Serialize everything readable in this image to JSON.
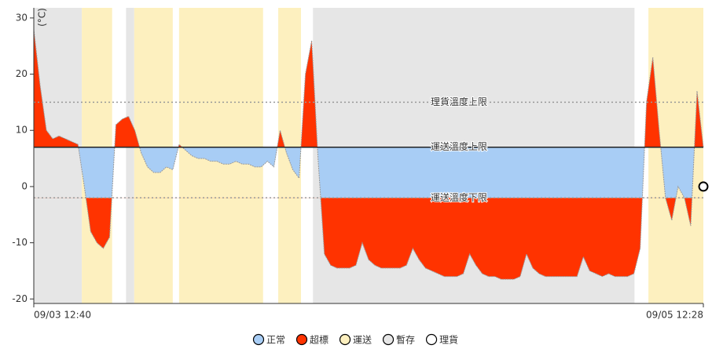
{
  "chart_data": {
    "type": "threshold-area",
    "y_label": "(°C)",
    "categories": [
      "09/03 12:40",
      null,
      null,
      null,
      null,
      null,
      null,
      null,
      null,
      null,
      null,
      null,
      null,
      null,
      null,
      null,
      null,
      null,
      null,
      null,
      null,
      null,
      null,
      null,
      null,
      null,
      null,
      null,
      null,
      null,
      null,
      null,
      null,
      null,
      null,
      null,
      null,
      null,
      null,
      null,
      null,
      null,
      null,
      null,
      null,
      null,
      null,
      null,
      null,
      null,
      null,
      null,
      null,
      null,
      null,
      null,
      null,
      null,
      null,
      null,
      null,
      null,
      null,
      null,
      null,
      null,
      null,
      null,
      null,
      null,
      null,
      null,
      null,
      null,
      null,
      null,
      null,
      null,
      null,
      null,
      null,
      null,
      null,
      null,
      null,
      null,
      null,
      null,
      null,
      null,
      null,
      null,
      null,
      null,
      null,
      null,
      null,
      null,
      null,
      null,
      null,
      null,
      null,
      null,
      null,
      null,
      "09/05 12:28"
    ],
    "values": [
      28,
      18,
      10,
      8.5,
      9,
      8.5,
      8,
      7.5,
      0,
      -8,
      -10,
      -11,
      -9,
      11,
      12,
      12.5,
      10,
      6,
      3.5,
      2.5,
      2.5,
      3.5,
      3,
      7.5,
      6.5,
      5.5,
      5,
      5,
      4.5,
      4.5,
      4,
      4,
      4.5,
      4,
      4,
      3.5,
      3.5,
      4.5,
      3.5,
      10,
      6,
      3,
      1.5,
      20,
      26,
      5,
      -12,
      -14,
      -14.5,
      -14.5,
      -14.5,
      -14,
      -10,
      -13,
      -14,
      -14.5,
      -14.5,
      -14.5,
      -14.5,
      -14,
      -11,
      -13,
      -14.5,
      -15,
      -15.5,
      -16,
      -16,
      -16,
      -15.5,
      -12,
      -14,
      -15.5,
      -16,
      -16,
      -16.5,
      -16.5,
      -16.5,
      -16,
      -12,
      -14.5,
      -15.5,
      -16,
      -16,
      -16,
      -16,
      -16,
      -16,
      -12.5,
      -15,
      -15.5,
      -16,
      -15.5,
      -16,
      -16,
      -16,
      -15.5,
      -11,
      15,
      23,
      10,
      -2,
      -6,
      0,
      -2,
      -7,
      17,
      7
    ],
    "marker_value": 0,
    "ylim": [
      -20.8,
      31.8
    ],
    "yticks": [
      -20,
      -10,
      0,
      10,
      20,
      30
    ],
    "thresholds": [
      {
        "label": "理貨溫度上限",
        "value": 15,
        "style": "dotted"
      },
      {
        "label": "運送溫度上限",
        "value": 7,
        "style": "solid"
      },
      {
        "label": "運送溫度下限",
        "value": -2,
        "style": "dotted"
      }
    ],
    "bands": [
      {
        "type": "暫存",
        "start": 0,
        "end": 7.6
      },
      {
        "type": "運送",
        "start": 7.6,
        "end": 12.4
      },
      {
        "type": "暫存",
        "start": 14.6,
        "end": 15.9
      },
      {
        "type": "運送",
        "start": 15.9,
        "end": 22
      },
      {
        "type": "運送",
        "start": 23,
        "end": 36.3
      },
      {
        "type": "運送",
        "start": 38.7,
        "end": 42.3
      },
      {
        "type": "暫存",
        "start": 44.2,
        "end": 95.1
      },
      {
        "type": "運送",
        "start": 97.3,
        "end": 106
      }
    ],
    "legend": [
      {
        "name": "正常",
        "color": "#a8cdf5"
      },
      {
        "name": "超標",
        "color": "#ff3300"
      },
      {
        "name": "運送",
        "color": "#fdf0bf"
      },
      {
        "name": "暫存",
        "color": "#e6e6e6"
      },
      {
        "name": "理貨",
        "color": "#ffffff"
      }
    ]
  }
}
